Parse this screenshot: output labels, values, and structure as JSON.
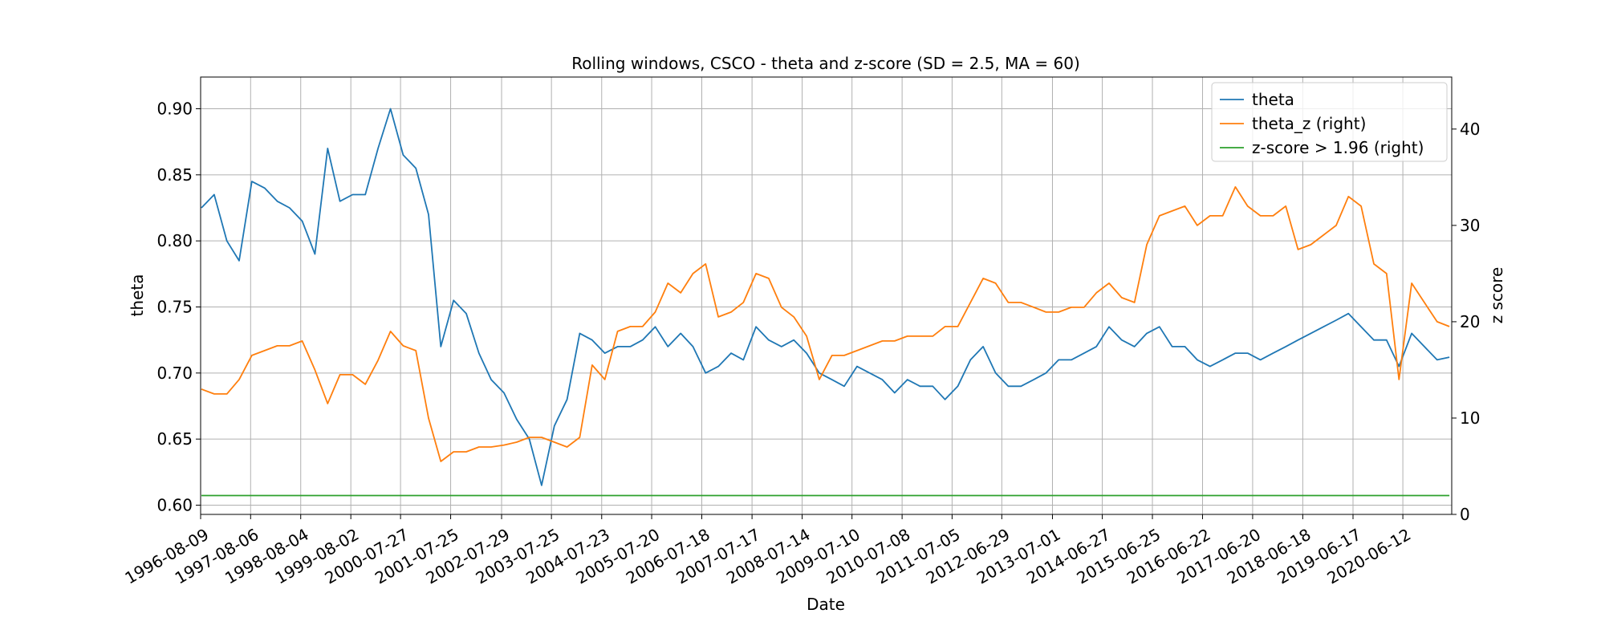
{
  "chart_data": {
    "type": "line",
    "title": "Rolling windows, CSCO - theta and z-score (SD = 2.5, MA = 60)",
    "xlabel": "Date",
    "ylabel": "theta",
    "y2label": "z score",
    "x": [
      "1996-08-15",
      "1996-11-15",
      "1997-02-15",
      "1997-05-15",
      "1997-08-15",
      "1997-11-15",
      "1998-02-15",
      "1998-05-15",
      "1998-08-15",
      "1998-11-15",
      "1999-02-15",
      "1999-05-15",
      "1999-08-15",
      "1999-11-15",
      "2000-02-15",
      "2000-05-15",
      "2000-08-15",
      "2000-11-15",
      "2001-02-15",
      "2001-05-15",
      "2001-08-15",
      "2001-11-15",
      "2002-02-15",
      "2002-05-15",
      "2002-08-15",
      "2002-11-15",
      "2003-02-15",
      "2003-05-15",
      "2003-08-15",
      "2003-11-15",
      "2004-02-15",
      "2004-05-15",
      "2004-08-15",
      "2004-11-15",
      "2005-02-15",
      "2005-05-15",
      "2005-08-15",
      "2005-11-15",
      "2006-02-15",
      "2006-05-15",
      "2006-08-15",
      "2006-11-15",
      "2007-02-15",
      "2007-05-15",
      "2007-08-15",
      "2007-11-15",
      "2008-02-15",
      "2008-05-15",
      "2008-08-15",
      "2008-11-15",
      "2009-02-15",
      "2009-05-15",
      "2009-08-15",
      "2009-11-15",
      "2010-02-15",
      "2010-05-15",
      "2010-08-15",
      "2010-11-15",
      "2011-02-15",
      "2011-05-15",
      "2011-08-15",
      "2011-11-15",
      "2012-02-15",
      "2012-05-15",
      "2012-08-15",
      "2012-11-15",
      "2013-02-15",
      "2013-05-15",
      "2013-08-15",
      "2013-11-15",
      "2014-02-15",
      "2014-05-15",
      "2014-08-15",
      "2014-11-15",
      "2015-02-15",
      "2015-05-15",
      "2015-08-15",
      "2015-11-15",
      "2016-02-15",
      "2016-05-15",
      "2016-08-15",
      "2016-11-15",
      "2017-02-15",
      "2017-05-15",
      "2017-08-15",
      "2017-11-15",
      "2018-02-15",
      "2018-05-15",
      "2018-08-15",
      "2018-11-15",
      "2019-02-15",
      "2019-05-15",
      "2019-08-15",
      "2019-11-15",
      "2020-02-15",
      "2020-05-15",
      "2020-08-15",
      "2020-11-15",
      "2021-02-15",
      "2021-05-15"
    ],
    "series": [
      {
        "name": "theta",
        "color": "#1f77b4",
        "values": [
          0.825,
          0.835,
          0.8,
          0.785,
          0.845,
          0.84,
          0.83,
          0.825,
          0.815,
          0.79,
          0.87,
          0.83,
          0.835,
          0.835,
          0.87,
          0.9,
          0.865,
          0.855,
          0.82,
          0.72,
          0.755,
          0.745,
          0.715,
          0.695,
          0.685,
          0.665,
          0.65,
          0.615,
          0.66,
          0.68,
          0.73,
          0.725,
          0.715,
          0.72,
          0.72,
          0.725,
          0.735,
          0.72,
          0.73,
          0.72,
          0.7,
          0.705,
          0.715,
          0.71,
          0.735,
          0.725,
          0.72,
          0.725,
          0.715,
          0.7,
          0.695,
          0.69,
          0.705,
          0.7,
          0.695,
          0.685,
          0.695,
          0.69,
          0.69,
          0.68,
          0.69,
          0.71,
          0.72,
          0.7,
          0.69,
          0.69,
          0.695,
          0.7,
          0.71,
          0.71,
          0.715,
          0.72,
          0.735,
          0.725,
          0.72,
          0.73,
          0.735,
          0.72,
          0.72,
          0.71,
          0.705,
          0.71,
          0.715,
          0.715,
          0.71,
          0.715,
          0.72,
          0.725,
          0.73,
          0.735,
          0.74,
          0.745,
          0.735,
          0.725,
          0.725,
          0.705,
          0.73,
          0.72,
          0.71,
          0.712
        ]
      },
      {
        "name": "theta_z (right)",
        "color": "#ff7f0e",
        "axis": "y2",
        "values": [
          13,
          12.5,
          12.5,
          14,
          16.5,
          17,
          17.5,
          17.5,
          18,
          15,
          11.5,
          14.5,
          14.5,
          13.5,
          16,
          19,
          17.5,
          17,
          10,
          5.5,
          6.5,
          6.5,
          7,
          7,
          7.2,
          7.5,
          8,
          8,
          7.5,
          7,
          8,
          15.5,
          14,
          19,
          19.5,
          19.5,
          21,
          24,
          23,
          25,
          26,
          20.5,
          21,
          22,
          25,
          24.5,
          21.5,
          20.5,
          18.5,
          14,
          16.5,
          16.5,
          17,
          17.5,
          18,
          18,
          18.5,
          18.5,
          18.5,
          19.5,
          19.5,
          22,
          24.5,
          24,
          22,
          22,
          21.5,
          21,
          21,
          21.5,
          21.5,
          23,
          24,
          22.5,
          22,
          28,
          31,
          31.5,
          32,
          30,
          31,
          31,
          34,
          32,
          31,
          31,
          32,
          27.5,
          28,
          29,
          30,
          33,
          32,
          26,
          25,
          14,
          24,
          22,
          20,
          19.5
        ]
      },
      {
        "name": "z-score > 1.96 (right)",
        "color": "#2ca02c",
        "axis": "y2",
        "x": [
          "1996-08-15",
          "2021-05-15"
        ],
        "values": [
          1.96,
          1.96
        ]
      }
    ],
    "xlim": [
      "1996-08-09",
      "2021-06-01"
    ],
    "xticks": [
      "1996-08-09",
      "1997-08-06",
      "1998-08-04",
      "1999-08-02",
      "2000-07-27",
      "2001-07-25",
      "2002-07-29",
      "2003-07-25",
      "2004-07-23",
      "2005-07-20",
      "2006-07-18",
      "2007-07-17",
      "2008-07-14",
      "2009-07-10",
      "2010-07-08",
      "2011-07-05",
      "2012-06-29",
      "2013-07-01",
      "2014-06-27",
      "2015-06-25",
      "2016-06-22",
      "2017-06-20",
      "2018-06-18",
      "2019-06-17",
      "2020-06-12"
    ],
    "ylim": [
      0.593,
      0.924
    ],
    "yticks": [
      {
        "value": 0.6,
        "label": "0.60"
      },
      0.65,
      {
        "value": 0.7,
        "label": "0.70"
      },
      0.75,
      {
        "value": 0.8,
        "label": "0.80"
      },
      0.85,
      {
        "value": 0.9,
        "label": "0.90"
      }
    ],
    "y2lim": [
      0,
      45.4
    ],
    "y2ticks": [
      0,
      10,
      20,
      30,
      40
    ],
    "grid": true,
    "legend": "upper right"
  }
}
